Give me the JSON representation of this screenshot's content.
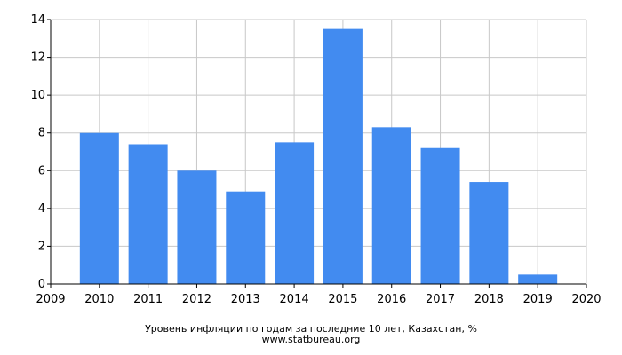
{
  "chart_data": {
    "type": "bar",
    "caption": "Уровень инфляции по годам за последние 10 лет, Казахстан, %",
    "source": "www.statbureau.org",
    "xlim": [
      2009,
      2020
    ],
    "ylim": [
      0,
      14
    ],
    "x_ticks": [
      "2009",
      "2010",
      "2011",
      "2012",
      "2013",
      "2014",
      "2015",
      "2016",
      "2017",
      "2018",
      "2019",
      "2020"
    ],
    "y_ticks": [
      "0",
      "2",
      "4",
      "6",
      "8",
      "10",
      "12",
      "14"
    ],
    "categories": [
      2010,
      2011,
      2012,
      2013,
      2014,
      2015,
      2016,
      2017,
      2018,
      2019
    ],
    "values": [
      8.0,
      7.4,
      6.0,
      4.9,
      7.5,
      13.5,
      8.3,
      7.2,
      5.4,
      0.5
    ],
    "grid": true,
    "bar_color": "#428bf0",
    "grid_color": "#c8c8c8"
  }
}
